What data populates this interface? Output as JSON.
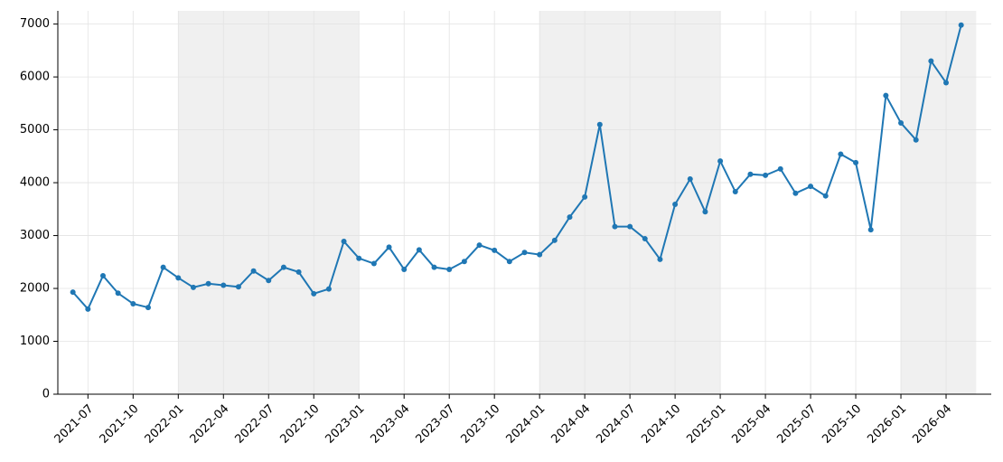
{
  "chart_data": {
    "type": "line",
    "color": "#1f77b4",
    "grid": true,
    "shade_color": "#f0f0f0",
    "x": [
      "2021-06",
      "2021-07",
      "2021-08",
      "2021-09",
      "2021-10",
      "2021-11",
      "2021-12",
      "2022-01",
      "2022-02",
      "2022-03",
      "2022-04",
      "2022-05",
      "2022-06",
      "2022-07",
      "2022-08",
      "2022-09",
      "2022-10",
      "2022-11",
      "2022-12",
      "2023-01",
      "2023-02",
      "2023-03",
      "2023-04",
      "2023-05",
      "2023-06",
      "2023-07",
      "2023-08",
      "2023-09",
      "2023-10",
      "2023-11",
      "2023-12",
      "2024-01",
      "2024-02",
      "2024-03",
      "2024-04",
      "2024-05",
      "2024-06",
      "2024-07",
      "2024-08",
      "2024-09",
      "2024-10",
      "2024-11",
      "2024-12",
      "2025-01",
      "2025-02",
      "2025-03",
      "2025-04",
      "2025-05",
      "2025-06",
      "2025-07",
      "2025-08",
      "2025-09",
      "2025-10",
      "2025-11",
      "2025-12",
      "2026-01",
      "2026-02",
      "2026-03",
      "2026-04",
      "2026-05"
    ],
    "values": [
      1930,
      1610,
      2240,
      1910,
      1710,
      1640,
      2400,
      2200,
      2020,
      2090,
      2060,
      2030,
      2330,
      2150,
      2400,
      2310,
      1900,
      1990,
      2890,
      2570,
      2470,
      2780,
      2360,
      2730,
      2400,
      2360,
      2510,
      2820,
      2720,
      2510,
      2680,
      2640,
      2910,
      3350,
      3730,
      5100,
      3170,
      3170,
      2940,
      2550,
      3590,
      4070,
      3450,
      4410,
      3830,
      4160,
      4140,
      4260,
      3800,
      3930,
      3750,
      4540,
      4380,
      3110,
      5650,
      5130,
      4810,
      6300,
      5890,
      6980
    ],
    "shaded_spans": [
      [
        "2022-01",
        "2023-01"
      ],
      [
        "2024-01",
        "2025-01"
      ],
      [
        "2026-01",
        "2026-06"
      ]
    ],
    "xlim": [
      "2021-05",
      "2026-07"
    ],
    "xticks": [
      "2021-07",
      "2021-10",
      "2022-01",
      "2022-04",
      "2022-07",
      "2022-10",
      "2023-01",
      "2023-04",
      "2023-07",
      "2023-10",
      "2024-01",
      "2024-04",
      "2024-07",
      "2024-10",
      "2025-01",
      "2025-04",
      "2025-07",
      "2025-10",
      "2026-01",
      "2026-04"
    ],
    "ylim": [
      0,
      7250
    ],
    "yticks": [
      0,
      1000,
      2000,
      3000,
      4000,
      5000,
      6000,
      7000
    ]
  }
}
